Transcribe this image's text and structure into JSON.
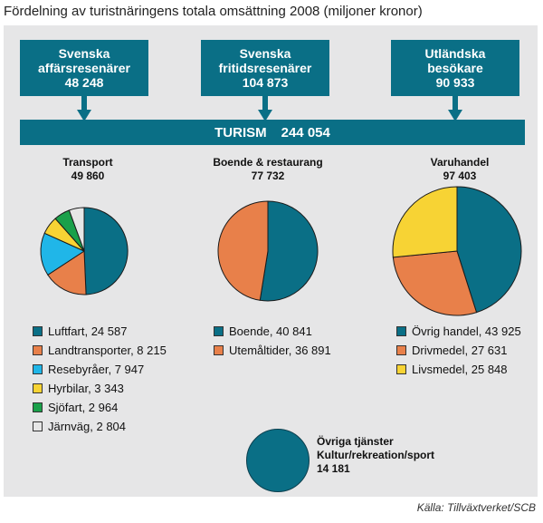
{
  "title": "Fördelning av turistnäringens totala omsättning 2008 (miljoner kronor)",
  "sources": [
    {
      "line1": "Svenska",
      "line2": "affärsresenärer",
      "value": "48 248"
    },
    {
      "line1": "Svenska",
      "line2": "fritidsresenärer",
      "value": "104 873"
    },
    {
      "line1": "Utländska",
      "line2": "besökare",
      "value": "90 933"
    }
  ],
  "turism": {
    "label": "TURISM",
    "value": "244 054"
  },
  "colors": {
    "teal": "#0a6f86",
    "orange": "#e8804a",
    "cyan": "#20b6e8",
    "yellow": "#f7d334",
    "green": "#1aa04a",
    "light": "#e6e6e6"
  },
  "chart_data": [
    {
      "type": "pie",
      "title": "Transport",
      "total": "49 860",
      "slices": [
        {
          "label": "Luftfart",
          "value": 24587,
          "display": "Luftfart, 24 587",
          "color": "#0a6f86"
        },
        {
          "label": "Landtransporter",
          "value": 8215,
          "display": "Landtransporter, 8 215",
          "color": "#e8804a"
        },
        {
          "label": "Resebyråer",
          "value": 7947,
          "display": "Resebyråer, 7 947",
          "color": "#20b6e8"
        },
        {
          "label": "Hyrbilar",
          "value": 3343,
          "display": "Hyrbilar, 3 343",
          "color": "#f7d334"
        },
        {
          "label": "Sjöfart",
          "value": 2964,
          "display": "Sjöfart, 2 964",
          "color": "#1aa04a"
        },
        {
          "label": "Järnväg",
          "value": 2804,
          "display": "Järnväg, 2 804",
          "color": "#e6e6e6"
        }
      ]
    },
    {
      "type": "pie",
      "title": "Boende & restaurang",
      "total": "77 732",
      "slices": [
        {
          "label": "Boende",
          "value": 40841,
          "display": "Boende, 40 841",
          "color": "#0a6f86"
        },
        {
          "label": "Utemåltider",
          "value": 36891,
          "display": "Utemåltider, 36 891",
          "color": "#e8804a"
        }
      ]
    },
    {
      "type": "pie",
      "title": "Varuhandel",
      "total": "97 403",
      "slices": [
        {
          "label": "Övrig handel",
          "value": 43925,
          "display": "Övrig handel, 43 925",
          "color": "#0a6f86"
        },
        {
          "label": "Drivmedel",
          "value": 27631,
          "display": "Drivmedel, 27 631",
          "color": "#e8804a"
        },
        {
          "label": "Livsmedel",
          "value": 25848,
          "display": "Livsmedel, 25 848",
          "color": "#f7d334"
        }
      ]
    }
  ],
  "other": {
    "line1": "Övriga tjänster",
    "line2": "Kultur/rekreation/sport",
    "value": "14 181"
  },
  "credit": "Källa: Tillväxtverket/SCB"
}
